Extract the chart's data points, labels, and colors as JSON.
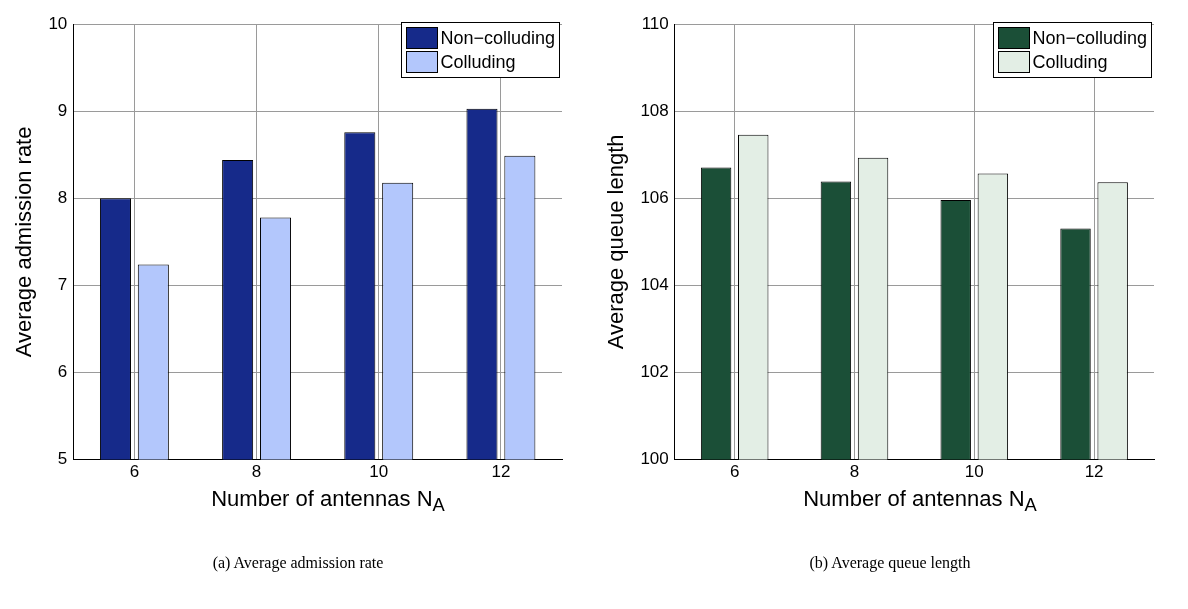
{
  "chart_data": [
    {
      "type": "bar",
      "xlabel": "Number of antennas N$_{A}$",
      "ylabel": "Average admission rate",
      "categories": [
        "6",
        "8",
        "10",
        "12"
      ],
      "series": [
        {
          "name": "Non−colluding",
          "color": "#162a8a",
          "values": [
            8.0,
            8.44,
            8.76,
            9.03
          ]
        },
        {
          "name": "Colluding",
          "color": "#b3c7fc",
          "values": [
            7.24,
            7.78,
            8.18,
            8.49
          ]
        }
      ],
      "ylim": [
        5,
        10
      ],
      "yticks": [
        5,
        6,
        7,
        8,
        9,
        10
      ],
      "grid": true,
      "legend": "top right",
      "annotations": [
        "(a) Average admission rate"
      ]
    },
    {
      "type": "bar",
      "xlabel": "Number of antennas N$_{A}$",
      "ylabel": "Average queue length",
      "categories": [
        "6",
        "8",
        "10",
        "12"
      ],
      "series": [
        {
          "name": "Non−colluding",
          "color": "#1b4f37",
          "values": [
            106.71,
            106.39,
            105.96,
            105.31
          ]
        },
        {
          "name": "Colluding",
          "color": "#e3eee5",
          "values": [
            107.46,
            106.93,
            106.57,
            106.37
          ]
        }
      ],
      "ylim": [
        100,
        110
      ],
      "yticks": [
        100,
        102,
        104,
        106,
        108,
        110
      ],
      "grid": true,
      "legend": "top right",
      "annotations": [
        "(b) Average queue length"
      ]
    }
  ]
}
